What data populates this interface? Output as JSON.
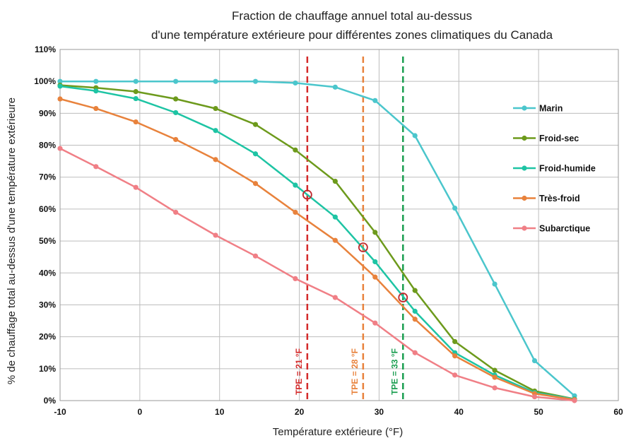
{
  "chart_data": {
    "type": "line",
    "title_line1": "Fraction de chauffage annuel total au-dessus",
    "title_line2": "d'une température extérieure pour différentes zones climatiques du Canada",
    "xlabel": "Température extérieure (°F)",
    "ylabel": "% de chauffage total au-dessus d'une température extérieure",
    "xlim": [
      -10,
      60
    ],
    "ylim": [
      0,
      110
    ],
    "x_ticks": [
      "-10",
      "0",
      "10",
      "20",
      "30",
      "40",
      "50",
      "60"
    ],
    "y_ticks": [
      "0%",
      "10%",
      "20%",
      "30%",
      "40%",
      "50%",
      "60%",
      "70%",
      "80%",
      "90%",
      "100%",
      "110%"
    ],
    "grid": true,
    "legend_position": "right",
    "series": [
      {
        "name": "Marin",
        "color": "#4bc6cc",
        "x": [
          -10,
          -5.5,
          -0.5,
          4.5,
          9.5,
          14.5,
          19.5,
          24.5,
          29.5,
          34.5,
          39.5,
          44.5,
          49.5,
          54.5
        ],
        "y": [
          100,
          100,
          100,
          100,
          100,
          100,
          99.5,
          98.2,
          94,
          83,
          60.3,
          36.5,
          12.5,
          1.5
        ]
      },
      {
        "name": "Froid-sec",
        "color": "#6d9a1c",
        "x": [
          -10,
          -5.5,
          -0.5,
          4.5,
          9.5,
          14.5,
          19.5,
          24.5,
          29.5,
          34.5,
          39.5,
          44.5,
          49.5,
          54.5
        ],
        "y": [
          98.8,
          98,
          96.8,
          94.5,
          91.5,
          86.5,
          78.5,
          68.7,
          52.7,
          34.5,
          18.5,
          9.5,
          3,
          0.5
        ]
      },
      {
        "name": "Froid-humide",
        "color": "#1ec4a4",
        "x": [
          -10,
          -5.5,
          -0.5,
          4.5,
          9.5,
          14.5,
          19.5,
          24.5,
          29.5,
          34.5,
          39.5,
          44.5,
          49.5,
          54.5
        ],
        "y": [
          98.5,
          97,
          94.6,
          90.2,
          84.6,
          77.3,
          67.5,
          57.5,
          43.5,
          28,
          15,
          8,
          2.5,
          0.5
        ]
      },
      {
        "name": "Très-froid",
        "color": "#e8823c",
        "x": [
          -10,
          -5.5,
          -0.5,
          4.5,
          9.5,
          14.5,
          19.5,
          24.5,
          29.5,
          34.5,
          39.5,
          44.5,
          49.5,
          54.5
        ],
        "y": [
          94.5,
          91.5,
          87.3,
          81.8,
          75.5,
          68,
          59,
          50.2,
          38.7,
          25.5,
          14,
          7.3,
          2.2,
          0.3
        ]
      },
      {
        "name": "Subarctique",
        "color": "#f07f86",
        "x": [
          -10,
          -5.5,
          -0.5,
          4.5,
          9.5,
          14.5,
          19.5,
          24.5,
          29.5,
          34.5,
          39.5,
          44.5,
          49.5,
          54.5
        ],
        "y": [
          79,
          73.3,
          66.8,
          59,
          51.8,
          45.3,
          38.2,
          32.3,
          24.3,
          15,
          8,
          4,
          1.2,
          0
        ]
      }
    ],
    "reference_lines": [
      {
        "label": "TPE = 21 °F",
        "x": 21,
        "color": "#d42a2a"
      },
      {
        "label": "TPE = 28 °F",
        "x": 28,
        "color": "#e8823c"
      },
      {
        "label": "TPE = 33 °F",
        "x": 33,
        "color": "#1a9e50"
      }
    ],
    "markers": [
      {
        "x": 21,
        "y": 64.5,
        "color": "#c0282e"
      },
      {
        "x": 28,
        "y": 48,
        "color": "#c0282e"
      },
      {
        "x": 33,
        "y": 32.3,
        "color": "#c0282e"
      }
    ]
  }
}
